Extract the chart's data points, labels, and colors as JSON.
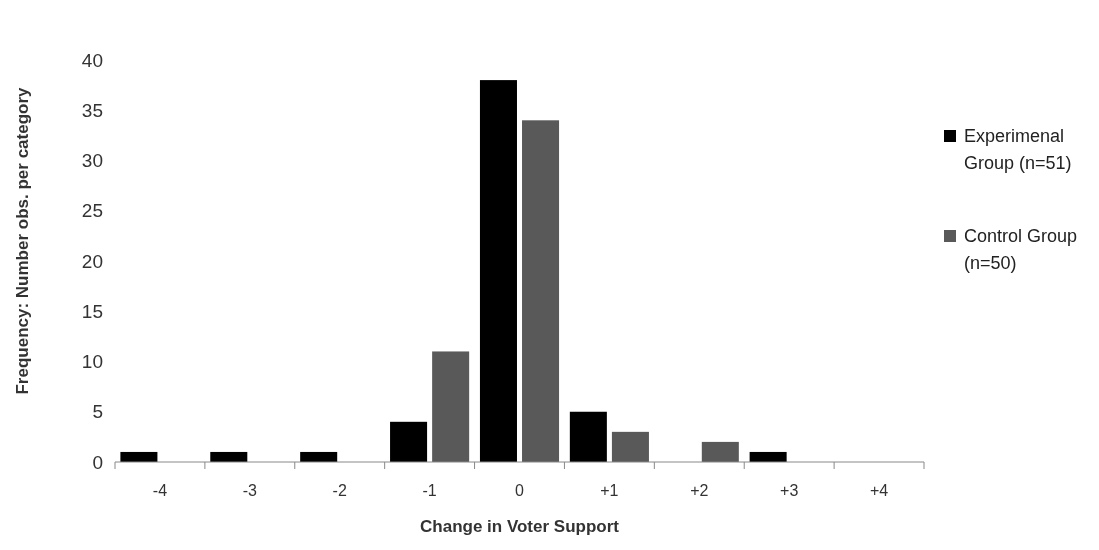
{
  "chart_data": {
    "type": "bar",
    "xlabel": "Change in Voter Support",
    "ylabel": "Frequency: Number obs. per category",
    "categories": [
      "-4",
      "-3",
      "-2",
      "-1",
      "0",
      "+1",
      "+2",
      "+3",
      "+4"
    ],
    "series": [
      {
        "name": "Experimenal Group (n=51)",
        "color": "#000000",
        "values": [
          1,
          1,
          1,
          4,
          38,
          5,
          0,
          1,
          0
        ]
      },
      {
        "name": "Control Group (n=50)",
        "color": "#595959",
        "values": [
          0,
          0,
          0,
          11,
          34,
          3,
          2,
          0,
          0
        ]
      }
    ],
    "ylim": [
      0,
      40
    ],
    "yticks": [
      0,
      5,
      10,
      15,
      20,
      25,
      30,
      35,
      40
    ],
    "grid": false,
    "legend": "right"
  }
}
